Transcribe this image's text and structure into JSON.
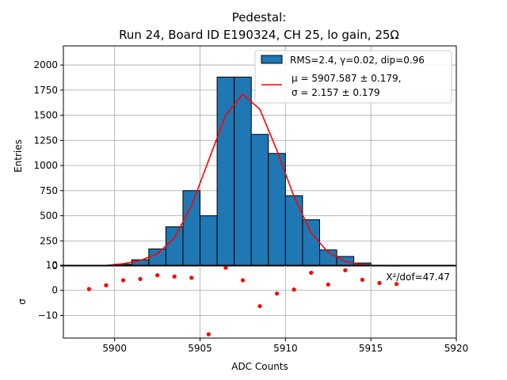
{
  "chart_data": [
    {
      "type": "bar",
      "panel": "main",
      "title_line1": "Pedestal:",
      "title_line2": "Run 24, Board ID E190324, CH 25, lo gain, 25Ω",
      "xlabel": "",
      "ylabel": "Entries",
      "xlim": [
        5897,
        5920
      ],
      "ylim": [
        0,
        2190
      ],
      "yticks": [
        "0",
        "250",
        "500",
        "750",
        "1000",
        "1250",
        "1500",
        "1750",
        "2000"
      ],
      "ytick_values": [
        0,
        250,
        500,
        750,
        1000,
        1250,
        1500,
        1750,
        2000
      ],
      "grid": true,
      "bin_width": 1,
      "bins": [
        5898,
        5899,
        5900,
        5901,
        5902,
        5903,
        5904,
        5905,
        5906,
        5907,
        5908,
        5909,
        5910,
        5911,
        5912,
        5913,
        5914,
        5915,
        5916,
        5917
      ],
      "values": [
        2,
        6,
        18,
        62,
        170,
        390,
        750,
        500,
        1880,
        1880,
        1310,
        1120,
        700,
        460,
        160,
        95,
        30,
        8,
        3,
        1
      ],
      "series": [
        {
          "name": "RMS=2.4, γ=0.02, dip=0.96",
          "kind": "histogram",
          "color": "#1f77b4"
        },
        {
          "name_line1": "μ = 5907.587 ± 0.179,",
          "name_line2": "σ = 2.157 ± 0.179",
          "kind": "line",
          "color": "#ff0000",
          "x": [
            5898.5,
            5899.5,
            5900.5,
            5901.5,
            5902.5,
            5903.5,
            5904.5,
            5905.5,
            5906.5,
            5907.5,
            5908.5,
            5909.5,
            5910.5,
            5911.5,
            5912.5,
            5913.5,
            5914.5,
            5915.5,
            5916.5
          ],
          "y": [
            2,
            6,
            22,
            55,
            120,
            280,
            600,
            1050,
            1500,
            1710,
            1560,
            1150,
            690,
            330,
            135,
            45,
            12,
            3,
            1
          ]
        }
      ],
      "legend_placement": "top-right"
    },
    {
      "type": "scatter",
      "panel": "residuals",
      "xlabel": "ADC Counts",
      "ylabel": "σ",
      "xlim": [
        5897,
        5920
      ],
      "ylim": [
        -19,
        10
      ],
      "xticks": [
        "5900",
        "5905",
        "5910",
        "5915",
        "5920"
      ],
      "xtick_values": [
        5900,
        5905,
        5910,
        5915,
        5920
      ],
      "yticks": [
        "−10",
        "0",
        "10"
      ],
      "ytick_values": [
        -10,
        0,
        10
      ],
      "grid": true,
      "annotation": "X²/dof=47.47",
      "color": "#ff0000",
      "x": [
        5898.5,
        5899.5,
        5900.5,
        5901.5,
        5902.5,
        5903.5,
        5904.5,
        5905.5,
        5906.5,
        5907.5,
        5908.5,
        5909.5,
        5910.5,
        5911.5,
        5912.5,
        5913.5,
        5914.5,
        5915.5,
        5916.5
      ],
      "y": [
        0.5,
        2,
        4,
        4.5,
        6,
        5.5,
        5,
        -17.5,
        9,
        4,
        -6.3,
        -1.3,
        0.3,
        7,
        2.3,
        8,
        4.2,
        2.9,
        2.5
      ]
    }
  ]
}
